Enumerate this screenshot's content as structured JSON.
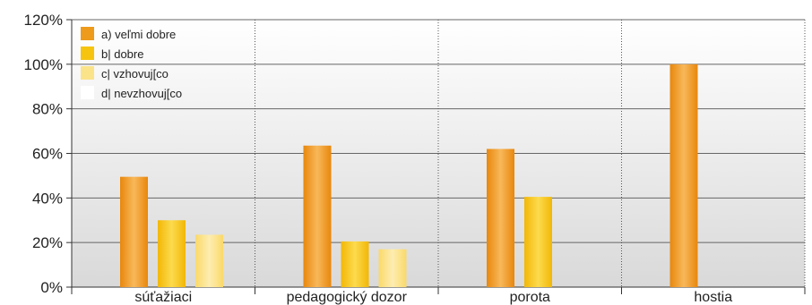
{
  "chart_data": {
    "type": "bar",
    "categories": [
      "súťažiaci",
      "pedagogický dozor",
      "porota",
      "hostia"
    ],
    "series": [
      {
        "name": "a) veľmi dobre",
        "values": [
          49.5,
          63.5,
          62,
          100
        ],
        "color": "#EE9A1A"
      },
      {
        "name": "b| dobre",
        "values": [
          30,
          20.5,
          40.5,
          0
        ],
        "color": "#F6C40F"
      },
      {
        "name": "c| vzhovuj[co",
        "values": [
          23.5,
          17,
          0,
          0
        ],
        "color": "#FBE38A"
      },
      {
        "name": "d| nevzhovuj[co",
        "values": [
          0,
          0,
          0,
          0
        ],
        "color": "#FFFFFF"
      }
    ],
    "yticks": [
      "0%",
      "20%",
      "40%",
      "60%",
      "80%",
      "100%",
      "120%"
    ],
    "ylim": [
      0,
      120
    ],
    "grid": true,
    "legend_position": "top-left"
  }
}
